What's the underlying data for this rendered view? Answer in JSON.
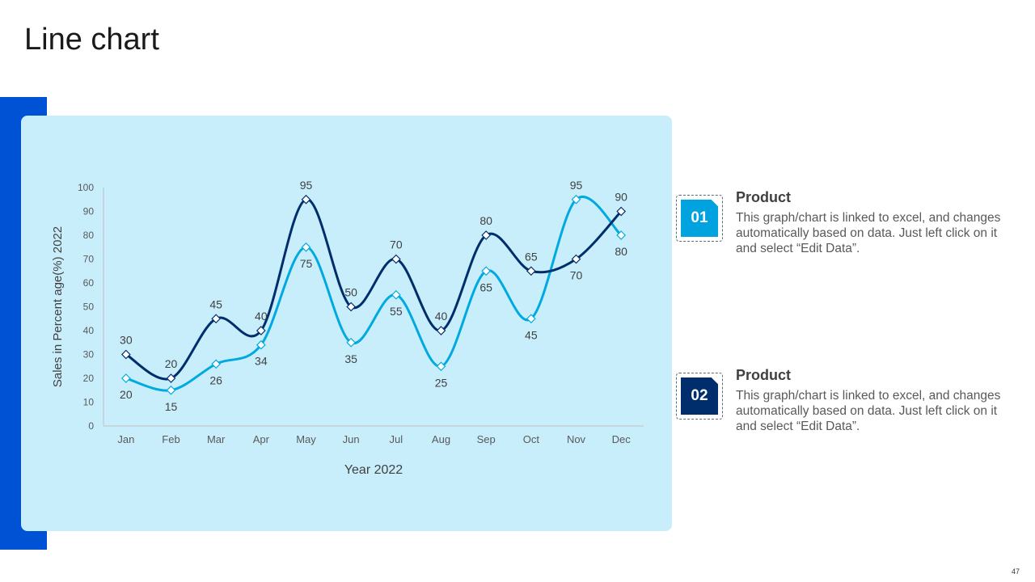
{
  "slide": {
    "title": "Line chart",
    "page_number": "47"
  },
  "colors": {
    "accent_bar": "#0052D4",
    "panel": "#C8EEFC",
    "series_1": "#002D6B",
    "series_2": "#00A9E0",
    "badge_1": "#00A3E0",
    "badge_2": "#002D6B"
  },
  "legend": [
    {
      "badge": "01",
      "heading": "Product",
      "text": "This graph/chart is linked to excel, and changes automatically based on data. Just left click on it and select “Edit Data”."
    },
    {
      "badge": "02",
      "heading": "Product",
      "text": "This graph/chart is linked to excel, and changes automatically based on data. Just left click on it and select “Edit Data”."
    }
  ],
  "chart_data": {
    "type": "line",
    "smooth": true,
    "xlabel": "Year 2022",
    "ylabel": "Sales in Percent age(%) 2022",
    "ylim": [
      0,
      100
    ],
    "yticks": [
      0,
      10,
      20,
      30,
      40,
      50,
      60,
      70,
      80,
      90,
      100
    ],
    "categories": [
      "Jan",
      "Feb",
      "Mar",
      "Apr",
      "May",
      "Jun",
      "Jul",
      "Aug",
      "Sep",
      "Oct",
      "Nov",
      "Dec"
    ],
    "grid": false,
    "legend": "none",
    "series": [
      {
        "values": [
          30,
          20,
          45,
          40,
          95,
          50,
          70,
          40,
          80,
          65,
          70,
          90
        ]
      },
      {
        "values": [
          20,
          15,
          26,
          34,
          75,
          35,
          55,
          25,
          65,
          45,
          95,
          80
        ]
      }
    ]
  }
}
